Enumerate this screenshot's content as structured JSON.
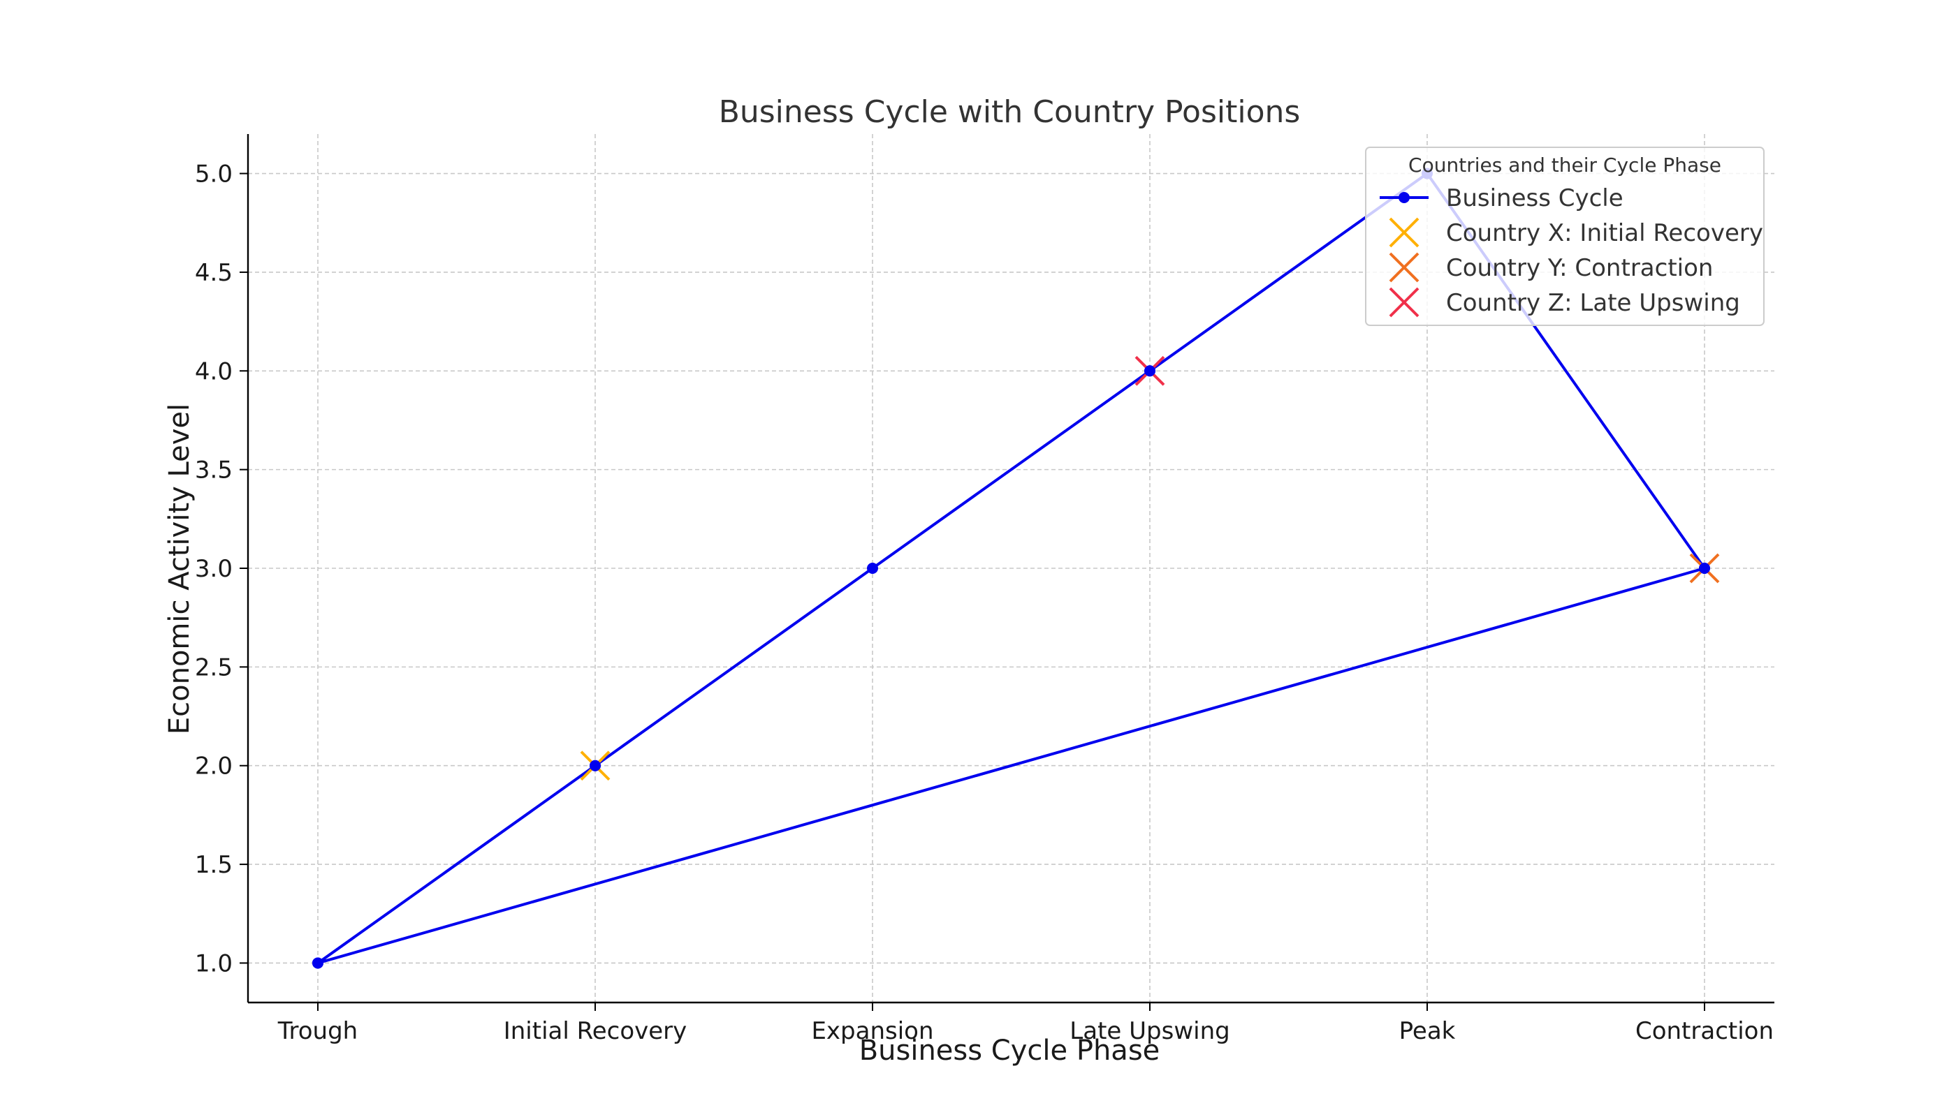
{
  "chart_data": {
    "type": "line",
    "title": "Business Cycle with Country Positions",
    "xlabel": "Business Cycle Phase",
    "ylabel": "Economic Activity Level",
    "categories": [
      "Trough",
      "Initial Recovery",
      "Expansion",
      "Late Upswing",
      "Peak",
      "Contraction"
    ],
    "ylim": [
      0.8,
      5.2
    ],
    "yticks": [
      "1.0",
      "1.5",
      "2.0",
      "2.5",
      "3.0",
      "3.5",
      "4.0",
      "4.5",
      "5.0"
    ],
    "grid": true,
    "series": [
      {
        "name": "Business Cycle",
        "color": "#0000ee",
        "marker": "circle",
        "x": [
          "Trough",
          "Initial Recovery",
          "Expansion",
          "Late Upswing",
          "Peak",
          "Contraction",
          "Trough"
        ],
        "y": [
          1.0,
          2.0,
          3.0,
          4.0,
          5.0,
          3.0,
          1.0
        ]
      }
    ],
    "markers": [
      {
        "name": "Country X: Initial Recovery",
        "x": "Initial Recovery",
        "y": 2.0,
        "color": "#ffb000",
        "marker": "x"
      },
      {
        "name": "Country Y: Contraction",
        "x": "Contraction",
        "y": 3.0,
        "color": "#f07020",
        "marker": "x"
      },
      {
        "name": "Country Z: Late Upswing",
        "x": "Late Upswing",
        "y": 4.0,
        "color": "#f0304a",
        "marker": "x"
      }
    ],
    "legend": {
      "title": "Countries and their Cycle Phase",
      "placement": "top-right"
    }
  }
}
